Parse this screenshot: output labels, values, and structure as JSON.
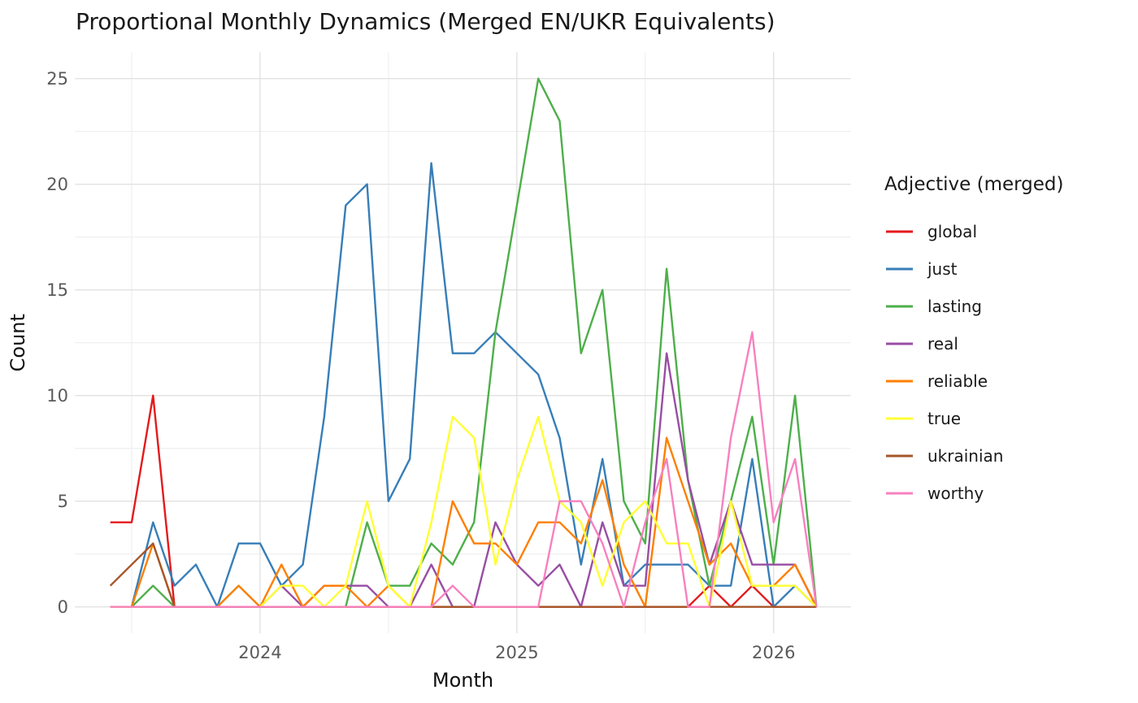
{
  "title": "Proportional Monthly Dynamics (Merged EN/UKR Equivalents)",
  "axes": {
    "x_label": "Month",
    "y_label": "Count",
    "x_tick_labels": [
      "2024",
      "2025",
      "2026"
    ],
    "y_tick_labels": [
      "0",
      "5",
      "10",
      "15",
      "20",
      "25"
    ]
  },
  "legend": {
    "title": "Adjective (merged)",
    "items": [
      {
        "label": "global",
        "color": "#E41A1C"
      },
      {
        "label": "just",
        "color": "#377EB8"
      },
      {
        "label": "lasting",
        "color": "#4DAF4A"
      },
      {
        "label": "real",
        "color": "#984EA3"
      },
      {
        "label": "reliable",
        "color": "#FF7F00"
      },
      {
        "label": "true",
        "color": "#FFFF33"
      },
      {
        "label": "ukrainian",
        "color": "#A65628"
      },
      {
        "label": "worthy",
        "color": "#F781BF"
      }
    ]
  },
  "chart_data": {
    "type": "line",
    "title": "Proportional Monthly Dynamics (Merged EN/UKR Equivalents)",
    "xlabel": "Month",
    "ylabel": "Count",
    "ylim": [
      0,
      25
    ],
    "grid": true,
    "legend_position": "right",
    "x": [
      "2023-06",
      "2023-07",
      "2023-08",
      "2023-09",
      "2023-10",
      "2023-11",
      "2023-12",
      "2024-01",
      "2024-02",
      "2024-03",
      "2024-04",
      "2024-05",
      "2024-06",
      "2024-07",
      "2024-08",
      "2024-09",
      "2024-10",
      "2024-11",
      "2024-12",
      "2025-01",
      "2025-02",
      "2025-03",
      "2025-04",
      "2025-05",
      "2025-06",
      "2025-07",
      "2025-08",
      "2025-09",
      "2025-10",
      "2025-11",
      "2025-12",
      "2026-01",
      "2026-02",
      "2026-03"
    ],
    "x_major_ticks": [
      "2024-01",
      "2025-01",
      "2026-01"
    ],
    "x_minor_ticks": [
      "2023-07",
      "2024-07",
      "2025-07"
    ],
    "y_major_ticks": [
      0,
      5,
      10,
      15,
      20,
      25
    ],
    "y_minor_ticks": [
      2.5,
      7.5,
      12.5,
      17.5,
      22.5
    ],
    "series": [
      {
        "name": "global",
        "color": "#E41A1C",
        "values": [
          4,
          4,
          10,
          0,
          0,
          0,
          0,
          0,
          0,
          0,
          0,
          0,
          0,
          0,
          0,
          0,
          0,
          0,
          0,
          0,
          0,
          0,
          0,
          0,
          0,
          0,
          0,
          0,
          1,
          0,
          1,
          0,
          0,
          0
        ]
      },
      {
        "name": "just",
        "color": "#377EB8",
        "values": [
          0,
          0,
          4,
          1,
          2,
          0,
          3,
          3,
          1,
          2,
          9,
          19,
          20,
          5,
          7,
          21,
          12,
          12,
          13,
          12,
          11,
          8,
          2,
          7,
          1,
          2,
          2,
          2,
          1,
          1,
          7,
          0,
          1,
          0
        ]
      },
      {
        "name": "lasting",
        "color": "#4DAF4A",
        "values": [
          0,
          0,
          1,
          0,
          0,
          0,
          1,
          0,
          0,
          0,
          0,
          0,
          4,
          1,
          1,
          3,
          2,
          4,
          13,
          19,
          25,
          23,
          12,
          15,
          5,
          3,
          16,
          6,
          1,
          5,
          9,
          2,
          10,
          0
        ]
      },
      {
        "name": "real",
        "color": "#984EA3",
        "values": [
          0,
          0,
          0,
          0,
          0,
          0,
          0,
          0,
          1,
          0,
          1,
          1,
          1,
          0,
          0,
          2,
          0,
          0,
          4,
          2,
          1,
          2,
          0,
          4,
          1,
          1,
          12,
          6,
          2,
          5,
          2,
          2,
          2,
          0
        ]
      },
      {
        "name": "reliable",
        "color": "#FF7F00",
        "values": [
          0,
          0,
          3,
          0,
          0,
          0,
          1,
          0,
          2,
          0,
          1,
          1,
          0,
          1,
          0,
          0,
          5,
          3,
          3,
          2,
          4,
          4,
          3,
          6,
          2,
          0,
          8,
          5,
          2,
          3,
          1,
          1,
          2,
          0
        ]
      },
      {
        "name": "true",
        "color": "#FFFF33",
        "values": [
          0,
          0,
          0,
          0,
          0,
          0,
          0,
          0,
          1,
          1,
          0,
          1,
          5,
          1,
          0,
          4,
          9,
          8,
          2,
          6,
          9,
          5,
          4,
          1,
          4,
          5,
          3,
          3,
          0,
          5,
          1,
          1,
          1,
          0
        ]
      },
      {
        "name": "ukrainian",
        "color": "#A65628",
        "values": [
          1,
          2,
          3,
          0,
          0,
          0,
          0,
          0,
          0,
          0,
          0,
          0,
          0,
          0,
          0,
          0,
          0,
          0,
          0,
          0,
          0,
          0,
          0,
          0,
          0,
          0,
          0,
          0,
          0,
          0,
          0,
          0,
          0,
          0
        ]
      },
      {
        "name": "worthy",
        "color": "#F781BF",
        "values": [
          0,
          0,
          0,
          0,
          0,
          0,
          0,
          0,
          0,
          0,
          0,
          0,
          0,
          0,
          0,
          0,
          1,
          0,
          0,
          0,
          0,
          5,
          5,
          3,
          0,
          4,
          7,
          0,
          0,
          8,
          13,
          4,
          7,
          0
        ]
      }
    ]
  }
}
